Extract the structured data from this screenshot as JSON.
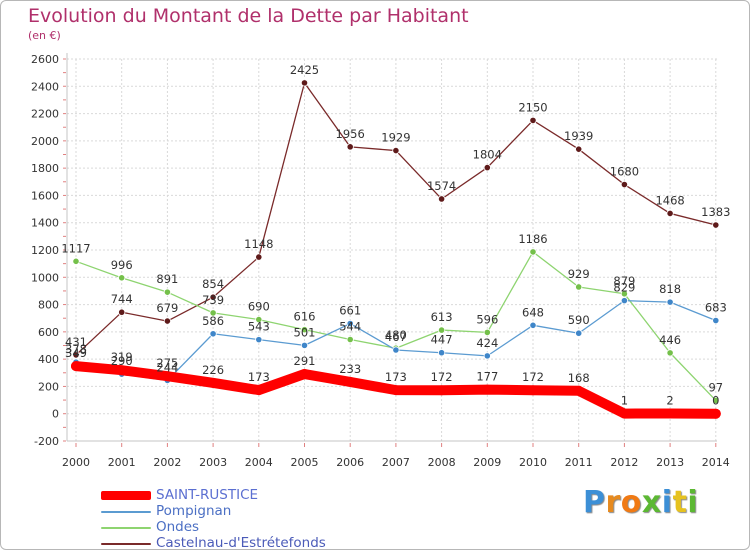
{
  "title": "Evolution du Montant de la Dette par Habitant",
  "subtitle": "(en €)",
  "logo": {
    "text": "Proxiti",
    "colors": [
      "#3c8fd6",
      "#e68a1f",
      "#f07a14",
      "#5cb833",
      "#3c8fd6",
      "#e6c21f",
      "#5cb833"
    ]
  },
  "chart_data": {
    "type": "line",
    "x": [
      "2000",
      "2001",
      "2002",
      "2003",
      "2004",
      "2005",
      "2006",
      "2007",
      "2008",
      "2009",
      "2010",
      "2011",
      "2012",
      "2013",
      "2014"
    ],
    "ylim": [
      -200,
      2600
    ],
    "yticks": [
      -200,
      0,
      200,
      400,
      600,
      800,
      1000,
      1200,
      1400,
      1600,
      1800,
      2000,
      2200,
      2400,
      2600
    ],
    "grid": true,
    "legend": "bottom-left",
    "series": [
      {
        "name": "Castelnau-d'Estrétefonds",
        "color": "#7a2a2a",
        "marker": "#5e1a1a",
        "values": [
          431,
          744,
          679,
          854,
          1148,
          2425,
          1956,
          1929,
          1574,
          1804,
          2150,
          1939,
          1680,
          1468,
          1383
        ],
        "labels": [
          "431",
          "744",
          "679",
          "854",
          "1148",
          "2425",
          "1956",
          "1929",
          "1574",
          "1804",
          "2150",
          "1939",
          "1680",
          "1468",
          "1383"
        ]
      },
      {
        "name": "Ondes",
        "color": "#8ed470",
        "marker": "#74c04a",
        "values": [
          1117,
          996,
          891,
          739,
          690,
          616,
          544,
          480,
          613,
          596,
          1186,
          929,
          879,
          446,
          97
        ],
        "labels": [
          "1117",
          "996",
          "891",
          "739",
          "690",
          "616",
          "544",
          "480",
          "613",
          "596",
          "1186",
          "929",
          "879",
          "446",
          "97"
        ]
      },
      {
        "name": "Pompignan",
        "color": "#5b9bd1",
        "marker": "#3f86c9",
        "values": [
          378,
          290,
          244,
          586,
          543,
          501,
          661,
          467,
          447,
          424,
          648,
          590,
          829,
          818,
          683
        ],
        "labels": [
          "378",
          "290",
          "244",
          "586",
          "543",
          "501",
          "661",
          "467",
          "447",
          "424",
          "648",
          "590",
          "829",
          "818",
          "683"
        ]
      },
      {
        "name": "SAINT-RUSTICE",
        "color": "#ff0000",
        "marker": "#ff0000",
        "thick": true,
        "values": [
          349,
          319,
          275,
          226,
          173,
          291,
          233,
          173,
          172,
          177,
          172,
          168,
          1,
          2,
          0
        ],
        "labels": [
          "349",
          "319",
          "275",
          "226",
          "173",
          "291",
          "233",
          "173",
          "172",
          "177",
          "172",
          "168",
          "1",
          "2",
          "0"
        ]
      }
    ],
    "legend_order": [
      "SAINT-RUSTICE",
      "Pompignan",
      "Ondes",
      "Castelnau-d'Estrétefonds"
    ]
  }
}
